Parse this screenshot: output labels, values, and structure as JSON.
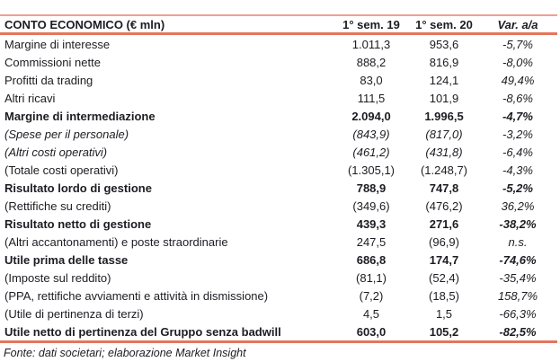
{
  "colors": {
    "accent": "#E5755B",
    "accent_light": "#EFA08D",
    "text": "#1c1c22"
  },
  "table": {
    "title": "CONTO ECONOMICO (€ mln)",
    "columns": [
      "1° sem. 19",
      "1° sem. 20",
      "Var. a/a"
    ],
    "rows": [
      {
        "label": "Margine di interesse",
        "sem19": "1.011,3",
        "sem20": "953,6",
        "var": "-5,7%",
        "emphasis": "normal"
      },
      {
        "label": "Commissioni nette",
        "sem19": "888,2",
        "sem20": "816,9",
        "var": "-8,0%",
        "emphasis": "normal"
      },
      {
        "label": "Profitti da trading",
        "sem19": "83,0",
        "sem20": "124,1",
        "var": "49,4%",
        "emphasis": "normal"
      },
      {
        "label": "Altri ricavi",
        "sem19": "111,5",
        "sem20": "101,9",
        "var": "-8,6%",
        "emphasis": "normal"
      },
      {
        "label": "Margine di intermediazione",
        "sem19": "2.094,0",
        "sem20": "1.996,5",
        "var": "-4,7%",
        "emphasis": "bold"
      },
      {
        "label": "(Spese per il personale)",
        "sem19": "(843,9)",
        "sem20": "(817,0)",
        "var": "-3,2%",
        "emphasis": "italic"
      },
      {
        "label": "(Altri costi operativi)",
        "sem19": "(461,2)",
        "sem20": "(431,8)",
        "var": "-6,4%",
        "emphasis": "italic"
      },
      {
        "label": "(Totale costi operativi)",
        "sem19": "(1.305,1)",
        "sem20": "(1.248,7)",
        "var": "-4,3%",
        "emphasis": "normal"
      },
      {
        "label": "Risultato lordo di gestione",
        "sem19": "788,9",
        "sem20": "747,8",
        "var": "-5,2%",
        "emphasis": "bold"
      },
      {
        "label": "(Rettifiche su crediti)",
        "sem19": "(349,6)",
        "sem20": "(476,2)",
        "var": "36,2%",
        "emphasis": "normal"
      },
      {
        "label": "Risultato netto di gestione",
        "sem19": "439,3",
        "sem20": "271,6",
        "var": "-38,2%",
        "emphasis": "bold"
      },
      {
        "label": "(Altri accantonamenti) e poste straordinarie",
        "sem19": "247,5",
        "sem20": "(96,9)",
        "var": "n.s.",
        "emphasis": "normal"
      },
      {
        "label": "Utile prima delle tasse",
        "sem19": "686,8",
        "sem20": "174,7",
        "var": "-74,6%",
        "emphasis": "bold"
      },
      {
        "label": "(Imposte sul reddito)",
        "sem19": "(81,1)",
        "sem20": "(52,4)",
        "var": "-35,4%",
        "emphasis": "normal"
      },
      {
        "label": "(PPA, rettifiche avviamenti e attività in dismissione)",
        "sem19": "(7,2)",
        "sem20": "(18,5)",
        "var": "158,7%",
        "emphasis": "normal"
      },
      {
        "label": "(Utile di pertinenza di terzi)",
        "sem19": "4,5",
        "sem20": "1,5",
        "var": "-66,3%",
        "emphasis": "normal"
      },
      {
        "label": "Utile netto di pertinenza del Gruppo senza badwill",
        "sem19": "603,0",
        "sem20": "105,2",
        "var": "-82,5%",
        "emphasis": "bold"
      }
    ],
    "footer": "Fonte: dati societari; elaborazione Market Insight"
  }
}
